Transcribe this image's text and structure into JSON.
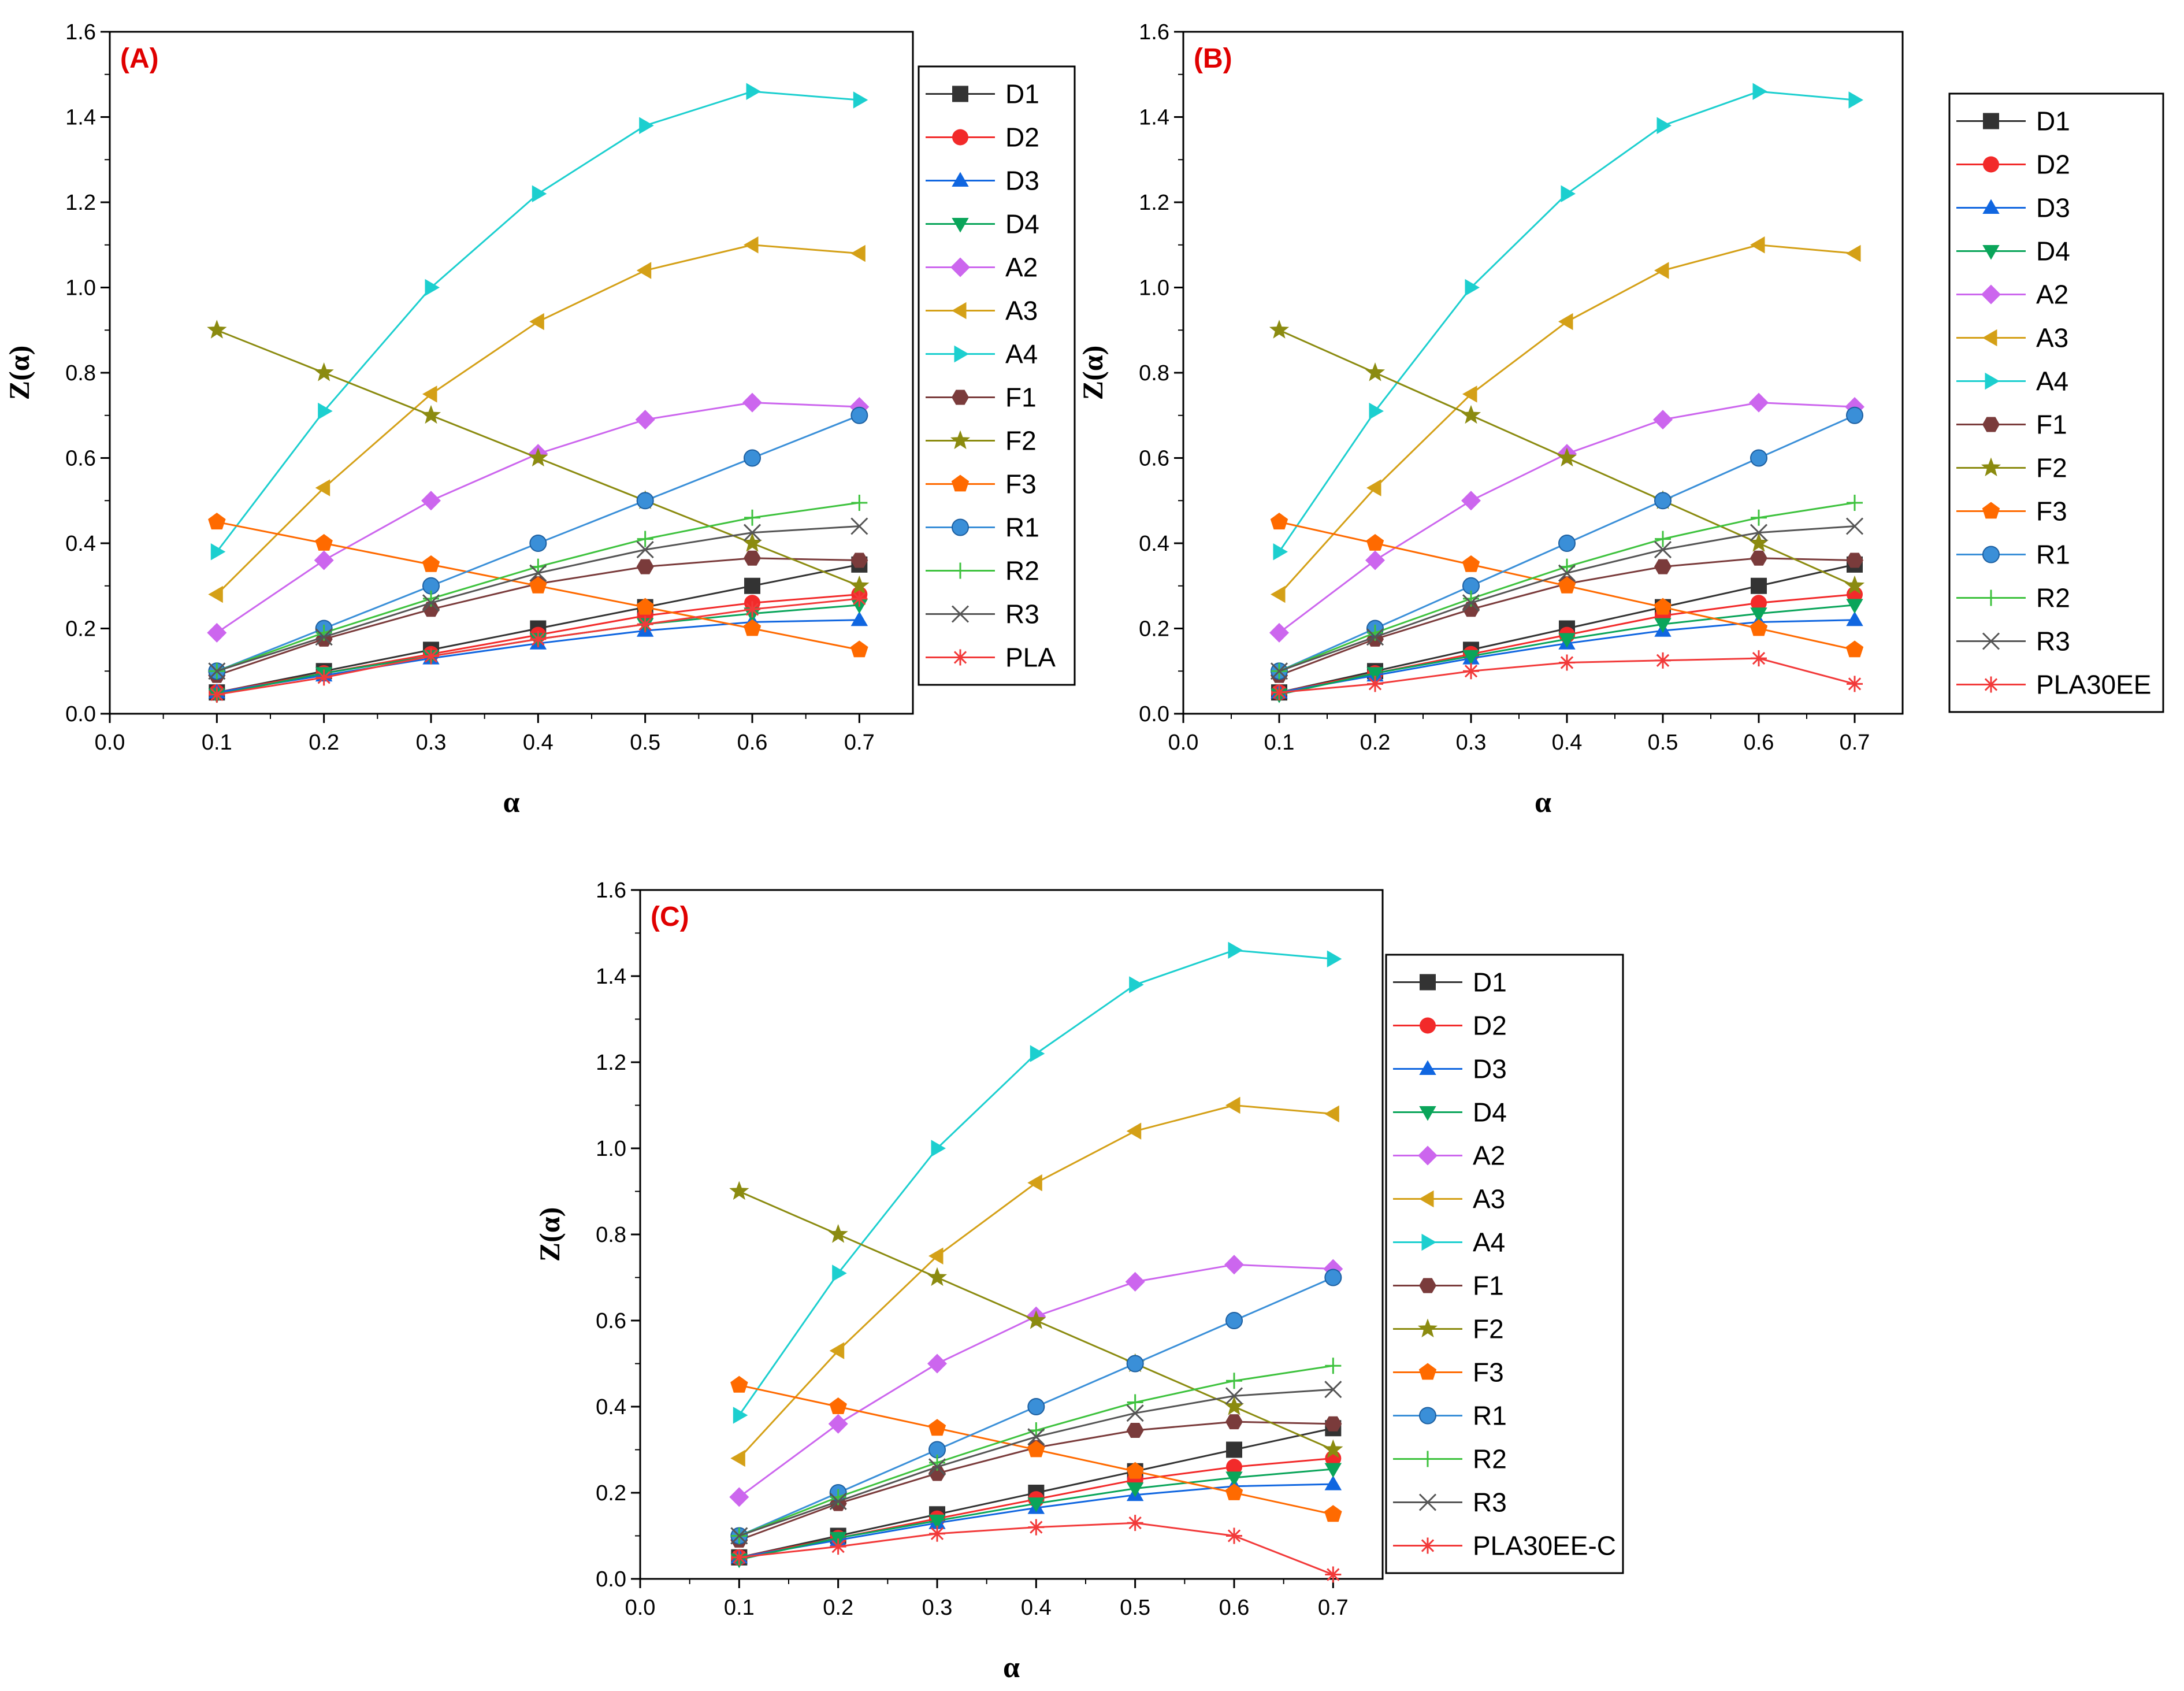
{
  "figure": {
    "title": ""
  },
  "styles": {
    "D1": {
      "color": "#333333",
      "marker": "square"
    },
    "D2": {
      "color": "#f22a2a",
      "marker": "circle"
    },
    "D3": {
      "color": "#1066e0",
      "marker": "triangle-up"
    },
    "D4": {
      "color": "#0aa55a",
      "marker": "triangle-down"
    },
    "A2": {
      "color": "#cc66ee",
      "marker": "diamond"
    },
    "A3": {
      "color": "#d4a017",
      "marker": "triangle-left"
    },
    "A4": {
      "color": "#1ccfcf",
      "marker": "triangle-right"
    },
    "F1": {
      "color": "#7a3b3b",
      "marker": "hexagon"
    },
    "F2": {
      "color": "#8b8b10",
      "marker": "star"
    },
    "F3": {
      "color": "#ff6a00",
      "marker": "pentagon"
    },
    "R1": {
      "color": "#3a8fd8",
      "marker": "ball"
    },
    "R2": {
      "color": "#3ec23e",
      "marker": "plus"
    },
    "R3": {
      "color": "#555555",
      "marker": "cross"
    },
    "PLA": {
      "color": "#f23a3a",
      "marker": "asterisk"
    }
  },
  "chart_data": [
    {
      "type": "line",
      "panel_label": "(A)",
      "xlabel": "α",
      "ylabel": "Z(α)",
      "xlim": [
        0.0,
        0.75
      ],
      "ylim": [
        0.0,
        1.6
      ],
      "xticks": [
        "0.0",
        "0.1",
        "0.2",
        "0.3",
        "0.4",
        "0.5",
        "0.6",
        "0.7"
      ],
      "yticks": [
        "0.0",
        "0.2",
        "0.4",
        "0.6",
        "0.8",
        "1.0",
        "1.2",
        "1.4",
        "1.6"
      ],
      "legend_position": "right",
      "x": [
        0.1,
        0.2,
        0.3,
        0.4,
        0.5,
        0.6,
        0.7
      ],
      "series": [
        {
          "name": "D1",
          "style": "D1",
          "values": [
            0.05,
            0.1,
            0.15,
            0.2,
            0.25,
            0.3,
            0.35
          ]
        },
        {
          "name": "D2",
          "style": "D2",
          "values": [
            0.05,
            0.095,
            0.14,
            0.185,
            0.23,
            0.26,
            0.28
          ]
        },
        {
          "name": "D3",
          "style": "D3",
          "values": [
            0.05,
            0.09,
            0.13,
            0.165,
            0.195,
            0.215,
            0.22
          ]
        },
        {
          "name": "D4",
          "style": "D4",
          "values": [
            0.045,
            0.095,
            0.135,
            0.175,
            0.21,
            0.235,
            0.255
          ]
        },
        {
          "name": "A2",
          "style": "A2",
          "values": [
            0.19,
            0.36,
            0.5,
            0.61,
            0.69,
            0.73,
            0.72
          ]
        },
        {
          "name": "A3",
          "style": "A3",
          "values": [
            0.28,
            0.53,
            0.75,
            0.92,
            1.04,
            1.1,
            1.08
          ]
        },
        {
          "name": "A4",
          "style": "A4",
          "values": [
            0.38,
            0.71,
            1.0,
            1.22,
            1.38,
            1.46,
            1.44
          ]
        },
        {
          "name": "F1",
          "style": "F1",
          "values": [
            0.09,
            0.175,
            0.245,
            0.305,
            0.345,
            0.365,
            0.36
          ]
        },
        {
          "name": "F2",
          "style": "F2",
          "values": [
            0.9,
            0.8,
            0.7,
            0.6,
            0.5,
            0.4,
            0.3
          ]
        },
        {
          "name": "F3",
          "style": "F3",
          "values": [
            0.45,
            0.4,
            0.35,
            0.3,
            0.25,
            0.2,
            0.15
          ]
        },
        {
          "name": "R1",
          "style": "R1",
          "values": [
            0.1,
            0.2,
            0.3,
            0.4,
            0.5,
            0.6,
            0.7
          ]
        },
        {
          "name": "R2",
          "style": "R2",
          "values": [
            0.1,
            0.19,
            0.27,
            0.345,
            0.41,
            0.46,
            0.495
          ]
        },
        {
          "name": "R3",
          "style": "R3",
          "values": [
            0.1,
            0.18,
            0.26,
            0.33,
            0.385,
            0.425,
            0.44
          ]
        },
        {
          "name": "PLA",
          "style": "PLA",
          "values": [
            0.045,
            0.085,
            0.135,
            0.175,
            0.21,
            0.245,
            0.27
          ]
        }
      ]
    },
    {
      "type": "line",
      "panel_label": "(B)",
      "xlabel": "α",
      "ylabel": "Z(α)",
      "xlim": [
        0.0,
        0.75
      ],
      "ylim": [
        0.0,
        1.6
      ],
      "xticks": [
        "0.0",
        "0.1",
        "0.2",
        "0.3",
        "0.4",
        "0.5",
        "0.6",
        "0.7"
      ],
      "yticks": [
        "0.0",
        "0.2",
        "0.4",
        "0.6",
        "0.8",
        "1.0",
        "1.2",
        "1.4",
        "1.6"
      ],
      "legend_position": "right",
      "x": [
        0.1,
        0.2,
        0.3,
        0.4,
        0.5,
        0.6,
        0.7
      ],
      "series": [
        {
          "name": "D1",
          "style": "D1",
          "values": [
            0.05,
            0.1,
            0.15,
            0.2,
            0.25,
            0.3,
            0.35
          ]
        },
        {
          "name": "D2",
          "style": "D2",
          "values": [
            0.05,
            0.095,
            0.14,
            0.185,
            0.23,
            0.26,
            0.28
          ]
        },
        {
          "name": "D3",
          "style": "D3",
          "values": [
            0.05,
            0.09,
            0.13,
            0.165,
            0.195,
            0.215,
            0.22
          ]
        },
        {
          "name": "D4",
          "style": "D4",
          "values": [
            0.045,
            0.095,
            0.135,
            0.175,
            0.21,
            0.235,
            0.255
          ]
        },
        {
          "name": "A2",
          "style": "A2",
          "values": [
            0.19,
            0.36,
            0.5,
            0.61,
            0.69,
            0.73,
            0.72
          ]
        },
        {
          "name": "A3",
          "style": "A3",
          "values": [
            0.28,
            0.53,
            0.75,
            0.92,
            1.04,
            1.1,
            1.08
          ]
        },
        {
          "name": "A4",
          "style": "A4",
          "values": [
            0.38,
            0.71,
            1.0,
            1.22,
            1.38,
            1.46,
            1.44
          ]
        },
        {
          "name": "F1",
          "style": "F1",
          "values": [
            0.09,
            0.175,
            0.245,
            0.305,
            0.345,
            0.365,
            0.36
          ]
        },
        {
          "name": "F2",
          "style": "F2",
          "values": [
            0.9,
            0.8,
            0.7,
            0.6,
            0.5,
            0.4,
            0.3
          ]
        },
        {
          "name": "F3",
          "style": "F3",
          "values": [
            0.45,
            0.4,
            0.35,
            0.3,
            0.25,
            0.2,
            0.15
          ]
        },
        {
          "name": "R1",
          "style": "R1",
          "values": [
            0.1,
            0.2,
            0.3,
            0.4,
            0.5,
            0.6,
            0.7
          ]
        },
        {
          "name": "R2",
          "style": "R2",
          "values": [
            0.1,
            0.19,
            0.27,
            0.345,
            0.41,
            0.46,
            0.495
          ]
        },
        {
          "name": "R3",
          "style": "R3",
          "values": [
            0.1,
            0.18,
            0.26,
            0.33,
            0.385,
            0.425,
            0.44
          ]
        },
        {
          "name": "PLA30EE",
          "style": "PLA",
          "values": [
            0.05,
            0.07,
            0.1,
            0.12,
            0.125,
            0.13,
            0.07
          ]
        }
      ]
    },
    {
      "type": "line",
      "panel_label": "(C)",
      "xlabel": "α",
      "ylabel": "Z(α)",
      "xlim": [
        0.0,
        0.75
      ],
      "ylim": [
        0.0,
        1.6
      ],
      "xticks": [
        "0.0",
        "0.1",
        "0.2",
        "0.3",
        "0.4",
        "0.5",
        "0.6",
        "0.7"
      ],
      "yticks": [
        "0.0",
        "0.2",
        "0.4",
        "0.6",
        "0.8",
        "1.0",
        "1.2",
        "1.4",
        "1.6"
      ],
      "legend_position": "right",
      "x": [
        0.1,
        0.2,
        0.3,
        0.4,
        0.5,
        0.6,
        0.7
      ],
      "series": [
        {
          "name": "D1",
          "style": "D1",
          "values": [
            0.05,
            0.1,
            0.15,
            0.2,
            0.25,
            0.3,
            0.35
          ]
        },
        {
          "name": "D2",
          "style": "D2",
          "values": [
            0.05,
            0.095,
            0.14,
            0.185,
            0.23,
            0.26,
            0.28
          ]
        },
        {
          "name": "D3",
          "style": "D3",
          "values": [
            0.05,
            0.09,
            0.13,
            0.165,
            0.195,
            0.215,
            0.22
          ]
        },
        {
          "name": "D4",
          "style": "D4",
          "values": [
            0.045,
            0.095,
            0.135,
            0.175,
            0.21,
            0.235,
            0.255
          ]
        },
        {
          "name": "A2",
          "style": "A2",
          "values": [
            0.19,
            0.36,
            0.5,
            0.61,
            0.69,
            0.73,
            0.72
          ]
        },
        {
          "name": "A3",
          "style": "A3",
          "values": [
            0.28,
            0.53,
            0.75,
            0.92,
            1.04,
            1.1,
            1.08
          ]
        },
        {
          "name": "A4",
          "style": "A4",
          "values": [
            0.38,
            0.71,
            1.0,
            1.22,
            1.38,
            1.46,
            1.44
          ]
        },
        {
          "name": "F1",
          "style": "F1",
          "values": [
            0.09,
            0.175,
            0.245,
            0.305,
            0.345,
            0.365,
            0.36
          ]
        },
        {
          "name": "F2",
          "style": "F2",
          "values": [
            0.9,
            0.8,
            0.7,
            0.6,
            0.5,
            0.4,
            0.3
          ]
        },
        {
          "name": "F3",
          "style": "F3",
          "values": [
            0.45,
            0.4,
            0.35,
            0.3,
            0.25,
            0.2,
            0.15
          ]
        },
        {
          "name": "R1",
          "style": "R1",
          "values": [
            0.1,
            0.2,
            0.3,
            0.4,
            0.5,
            0.6,
            0.7
          ]
        },
        {
          "name": "R2",
          "style": "R2",
          "values": [
            0.1,
            0.19,
            0.27,
            0.345,
            0.41,
            0.46,
            0.495
          ]
        },
        {
          "name": "R3",
          "style": "R3",
          "values": [
            0.1,
            0.18,
            0.26,
            0.33,
            0.385,
            0.425,
            0.44
          ]
        },
        {
          "name": "PLA30EE-C",
          "style": "PLA",
          "values": [
            0.05,
            0.075,
            0.105,
            0.12,
            0.13,
            0.1,
            0.01
          ]
        }
      ]
    }
  ]
}
